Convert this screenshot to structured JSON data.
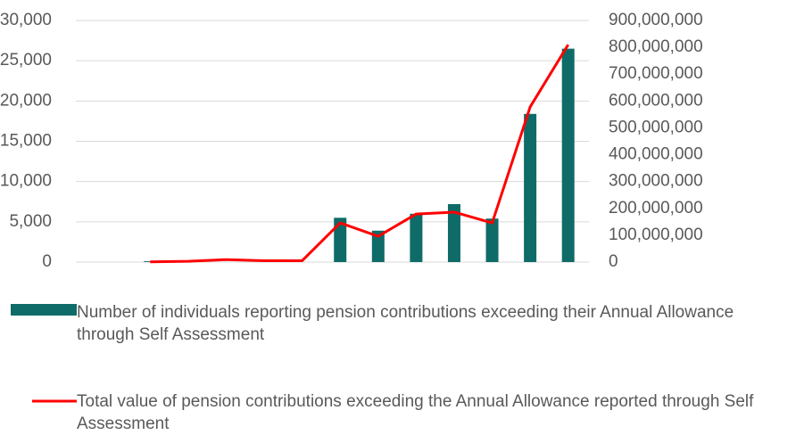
{
  "chart_data": {
    "type": "bar-line",
    "categories": [
      null,
      null,
      null,
      null,
      null,
      null,
      null,
      null,
      null,
      null,
      null,
      null
    ],
    "series": [
      {
        "name": "Number of individuals reporting pension contributions exceeding their Annual Allowance through Self Assessment",
        "color": "#0f6b68",
        "type": "bar",
        "values": [
          100,
          0,
          0,
          0,
          0,
          5500,
          3900,
          6000,
          7200,
          5400,
          18400,
          26500
        ]
      },
      {
        "name": "Total value of pension contributions exceeding the Annual Allowance reported through Self Assessment",
        "color": "#ff0000",
        "type": "line",
        "axis": "y2",
        "values": [
          1000000,
          3000000,
          9000000,
          5000000,
          5000000,
          146000000,
          96000000,
          179000000,
          186000000,
          146000000,
          578000000,
          810000000
        ]
      }
    ],
    "ylim": [
      0,
      30000
    ],
    "yticks": [
      0,
      {
        "value": 5000,
        "label": "5,000"
      },
      {
        "value": 10000,
        "label": "10,000"
      },
      {
        "value": 15000,
        "label": "15,000"
      },
      {
        "value": 20000,
        "label": "20,000"
      },
      {
        "value": 25000,
        "label": "25,000"
      },
      {
        "value": 30000,
        "label": "30,000"
      }
    ],
    "y2lim": [
      0,
      900000000
    ],
    "y2ticks": [
      0,
      {
        "value": 100000000,
        "label": "100,000,000"
      },
      {
        "value": 200000000,
        "label": "200,000,000"
      },
      {
        "value": 300000000,
        "label": "300,000,000"
      },
      {
        "value": 400000000,
        "label": "400,000,000"
      },
      {
        "value": 500000000,
        "label": "500,000,000"
      },
      {
        "value": 600000000,
        "label": "600,000,000"
      },
      {
        "value": 700000000,
        "label": "700,000,000"
      },
      {
        "value": 800000000,
        "label": "800,000,000"
      },
      {
        "value": 900000000,
        "label": "900,000,000"
      }
    ],
    "grid": true
  }
}
